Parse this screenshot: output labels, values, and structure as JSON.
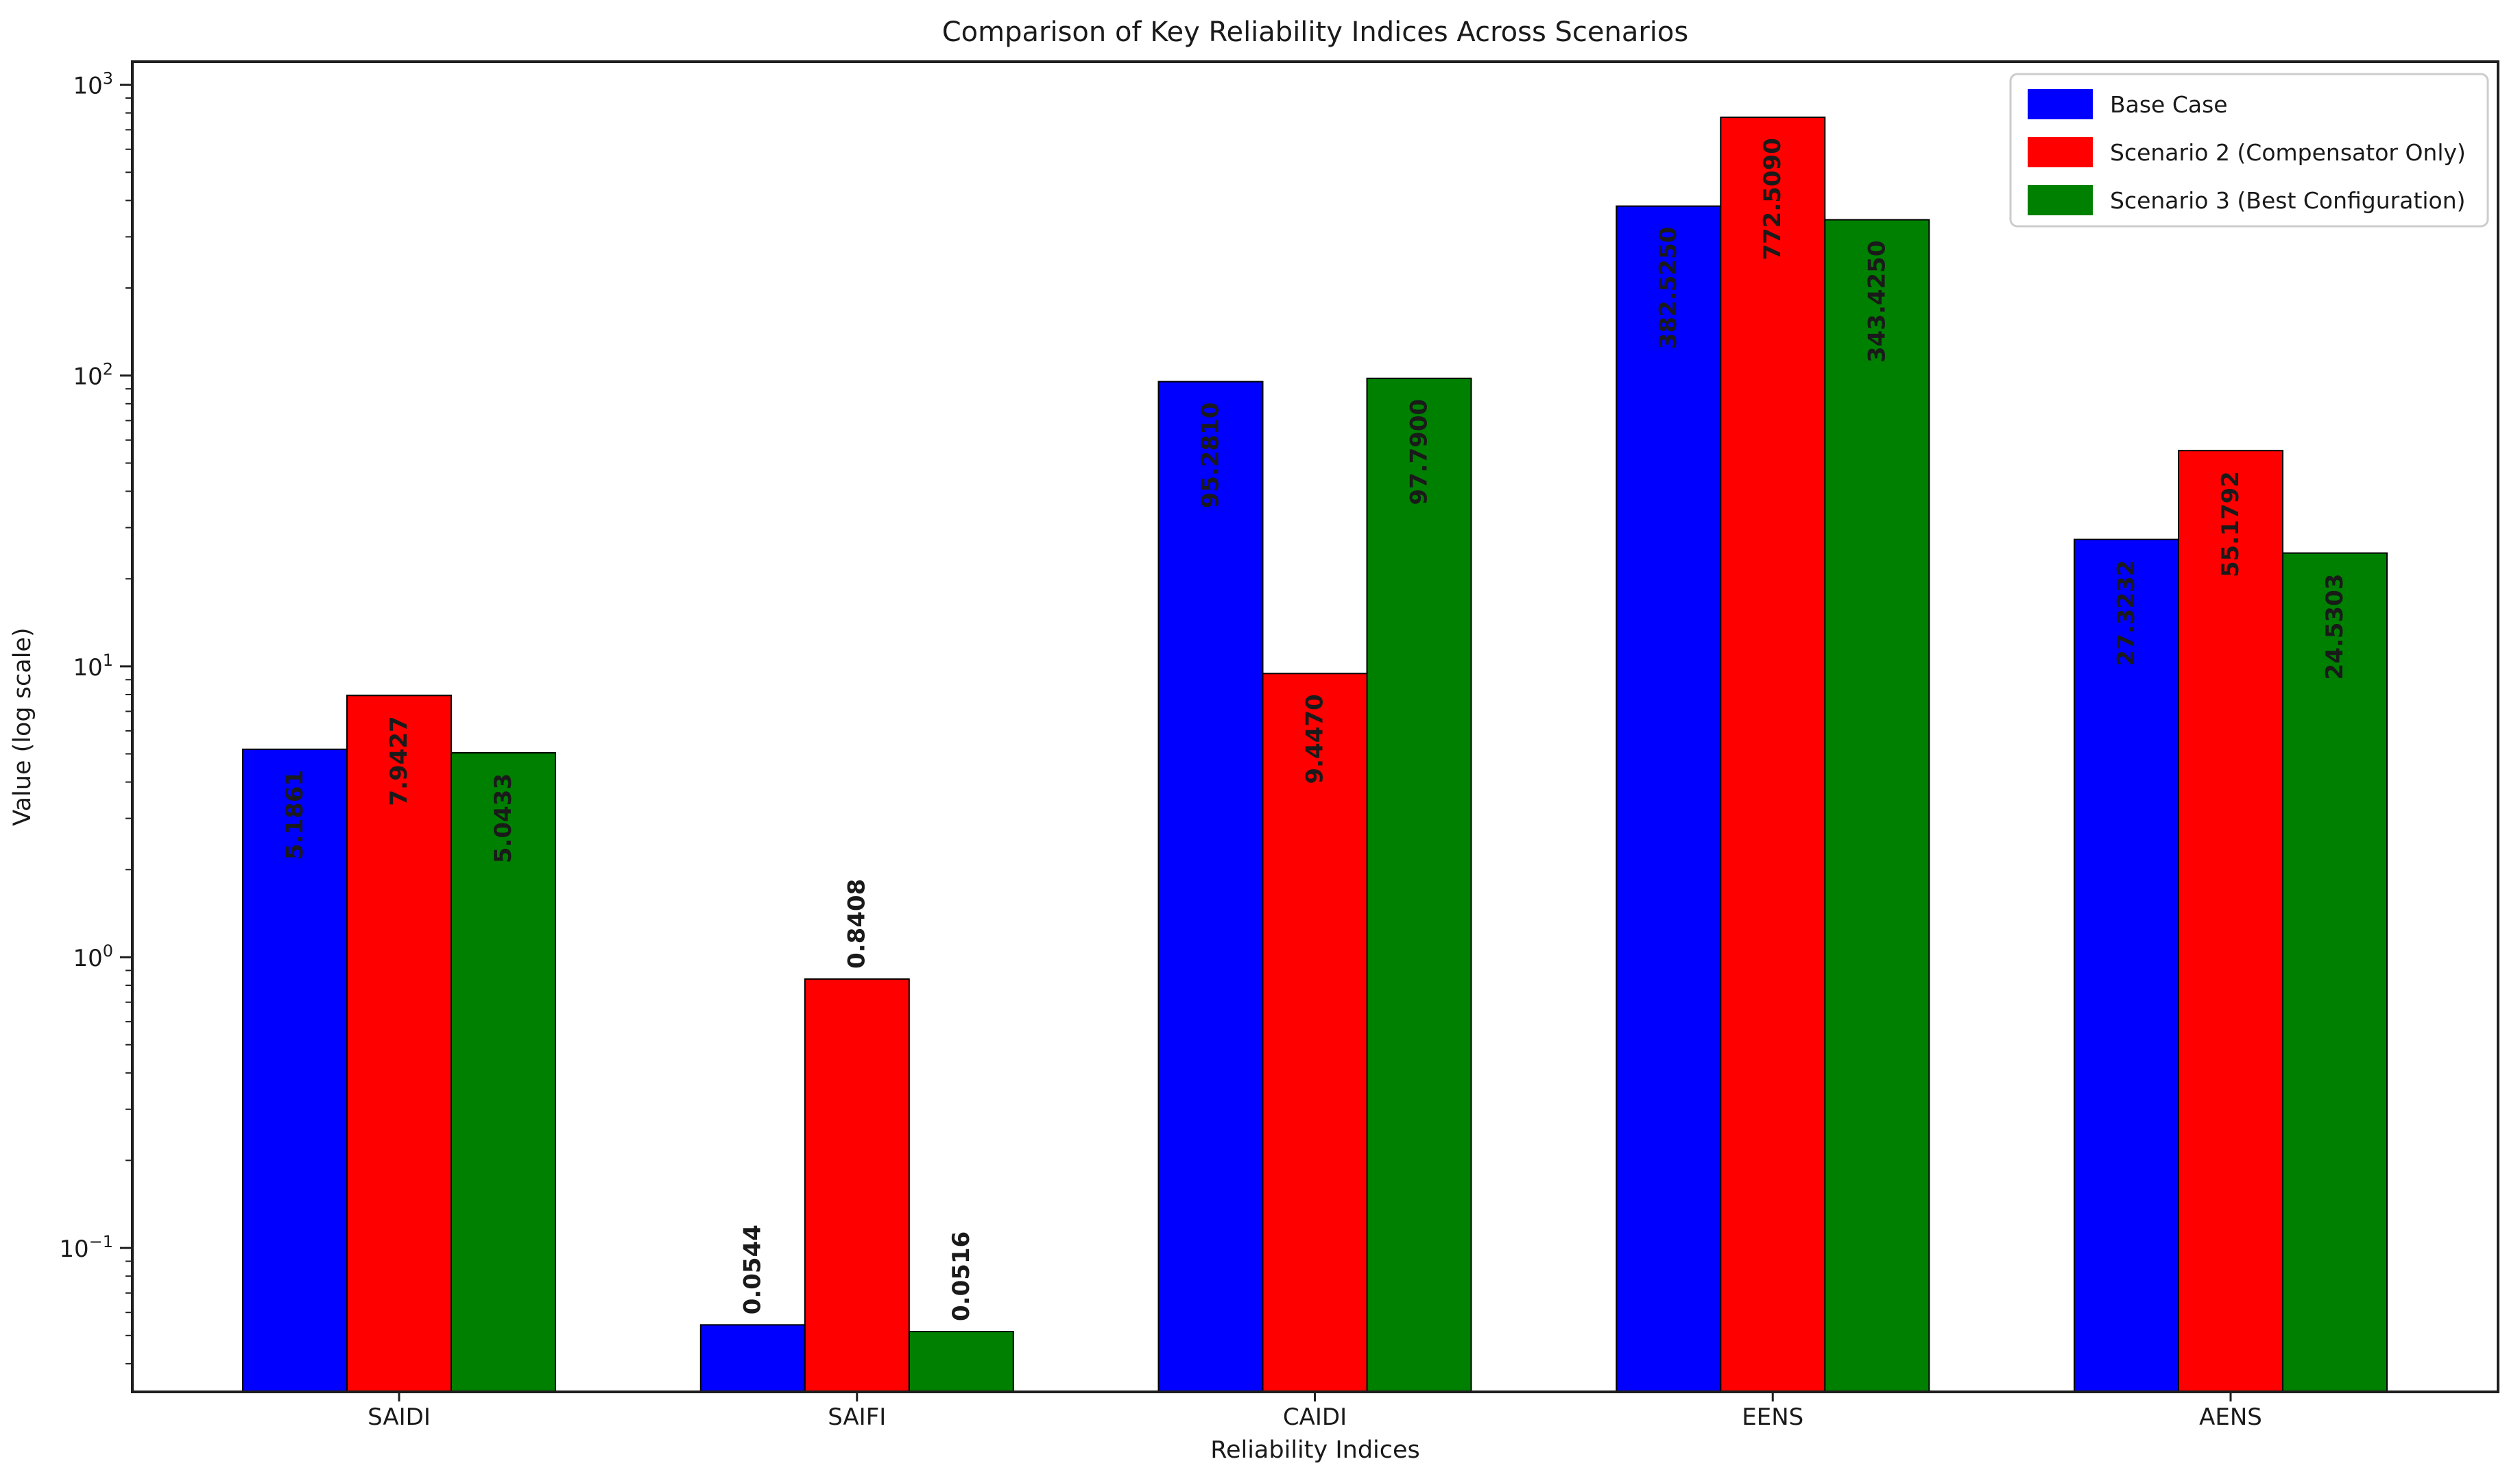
{
  "chart_data": {
    "type": "bar",
    "title": "Comparison of Key Reliability Indices Across Scenarios",
    "xlabel": "Reliability Indices",
    "ylabel": "Value (log scale)",
    "categories": [
      "SAIDI",
      "SAIFI",
      "CAIDI",
      "EENS",
      "AENS"
    ],
    "series": [
      {
        "name": "Base Case",
        "color": "#0000ff",
        "values": [
          5.1861,
          0.0544,
          95.281,
          382.525,
          27.3232
        ],
        "labels": [
          "5.1861",
          "0.0544",
          "95.2810",
          "382.5250",
          "27.3232"
        ]
      },
      {
        "name": "Scenario 2 (Compensator Only)",
        "color": "#ff0000",
        "values": [
          7.9427,
          0.8408,
          9.447,
          772.509,
          55.1792
        ],
        "labels": [
          "7.9427",
          "0.8408",
          "9.4470",
          "772.5090",
          "55.1792"
        ]
      },
      {
        "name": "Scenario 3 (Best Configuration)",
        "color": "#008000",
        "values": [
          5.0433,
          0.0516,
          97.79,
          343.425,
          24.5303
        ],
        "labels": [
          "5.0433",
          "0.0516",
          "97.7900",
          "343.4250",
          "24.5303"
        ]
      }
    ],
    "y_scale": "log",
    "ylim": [
      0.032,
      1200
    ],
    "y_ticks": [
      {
        "base": "10",
        "exp": "3",
        "value": 1000
      },
      {
        "base": "10",
        "exp": "2",
        "value": 100
      },
      {
        "base": "10",
        "exp": "1",
        "value": 10
      },
      {
        "base": "10",
        "exp": "0",
        "value": 1
      },
      {
        "base": "10",
        "exp": "−1",
        "value": 0.1
      }
    ],
    "legend_position": "upper right",
    "grid": false,
    "label_colors": {
      "inside": "#ffffff",
      "outside": "#000000"
    },
    "text_color": "#1a1a1a"
  }
}
